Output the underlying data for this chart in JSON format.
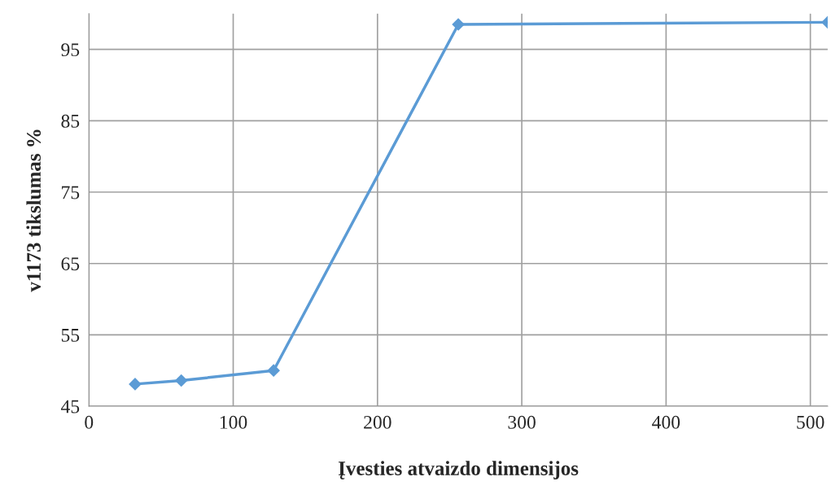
{
  "chart_data": {
    "type": "line",
    "xlabel": "Įvesties atvaizdo dimensijos",
    "ylabel": "v1173 tikslumas %",
    "x": [
      32,
      64,
      128,
      256,
      512
    ],
    "series": [
      {
        "color": "#5b9bd5",
        "values": [
          48.1,
          48.6,
          50.0,
          98.5,
          98.8
        ]
      }
    ],
    "xlim": [
      0,
      512
    ],
    "xticks": [
      0,
      100,
      200,
      300,
      400,
      500
    ],
    "ylim": [
      45,
      100
    ],
    "yticks": [
      45,
      55,
      65,
      75,
      85,
      95
    ],
    "grid": true,
    "marker": "diamond",
    "line_style": "solid"
  }
}
